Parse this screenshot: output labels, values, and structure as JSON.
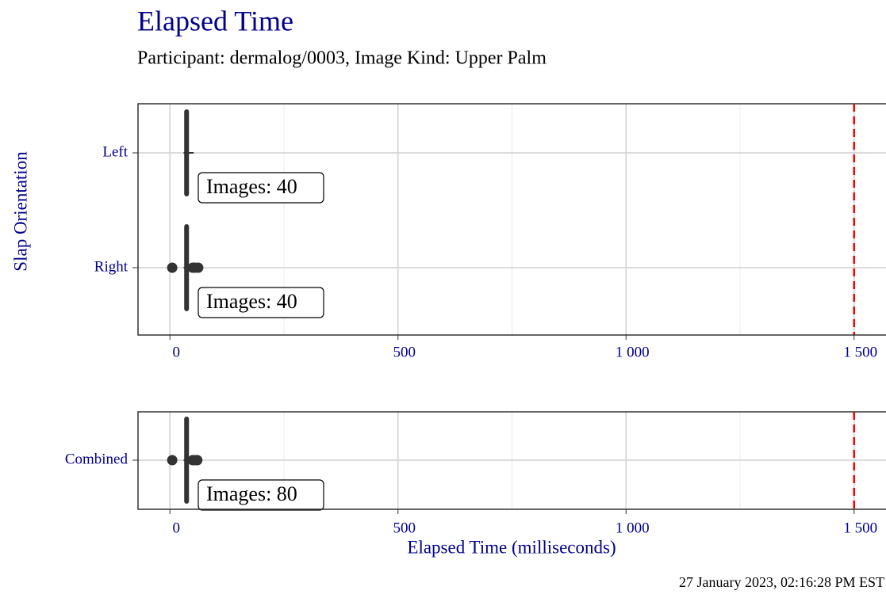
{
  "title": "Elapsed Time",
  "subtitle": "Participant: dermalog/0003, Image Kind: Upper Palm",
  "caption": "27 January 2023, 02:16:28 PM EST",
  "chart_data": [
    {
      "type": "box",
      "ylabel": "Slap Orientation",
      "categories": [
        "Left",
        "Right"
      ],
      "boxes": [
        {
          "min": 30,
          "q1": 33,
          "median": 37,
          "q3": 40,
          "max": 52,
          "outliers": [],
          "annotation": "Images: 40"
        },
        {
          "min": 30,
          "q1": 33,
          "median": 37,
          "q3": 40,
          "max": 45,
          "outliers": [
            5,
            50,
            55,
            62
          ],
          "annotation": "Images: 40"
        }
      ],
      "color": "#333333",
      "threshold": {
        "value": 1500,
        "color": "#ff0000"
      },
      "xlim": [
        -70,
        1570
      ],
      "xticks": [
        0,
        500,
        {
          "value": 1000,
          "label": "1 000"
        },
        {
          "value": 1500,
          "label": "1 500"
        }
      ],
      "xminorticks": [
        250,
        750,
        1250
      ],
      "grid": true
    },
    {
      "type": "box",
      "xlabel": "Elapsed Time (milliseconds)",
      "categories": [
        "Combined"
      ],
      "boxes": [
        {
          "min": 30,
          "q1": 33,
          "median": 37,
          "q3": 40,
          "max": 45,
          "outliers": [
            5,
            50,
            55,
            60
          ],
          "annotation": "Images: 80"
        }
      ],
      "color": "#333333",
      "threshold": {
        "value": 1500,
        "color": "#ff0000"
      },
      "xlim": [
        -70,
        1570
      ],
      "xticks": [
        0,
        500,
        {
          "value": 1000,
          "label": "1 000"
        },
        {
          "value": 1500,
          "label": "1 500"
        }
      ],
      "xminorticks": [
        250,
        750,
        1250
      ],
      "grid": true
    }
  ]
}
